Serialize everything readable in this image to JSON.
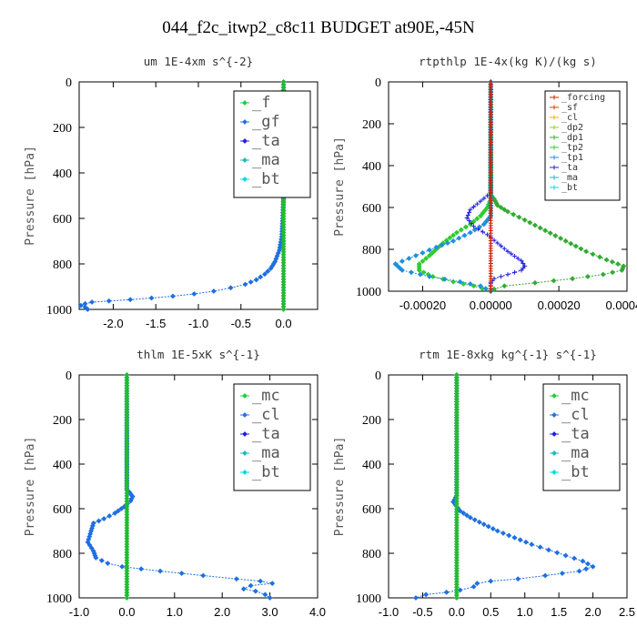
{
  "figure_title": "044_f2c_itwp2_c8c11  BUDGET at90E,-45N",
  "chart_data": [
    {
      "type": "line",
      "title": "um   1E-4xm s^{-2}",
      "ylabel": "Pressure [hPa]",
      "ylim": [
        1000,
        0
      ],
      "yticks": [
        "0",
        "200",
        "400",
        "600",
        "800",
        "1000"
      ],
      "xlim": [
        -2.4,
        0.4
      ],
      "xticks": [
        "-2.0",
        "-1.5",
        "-1.0",
        "-0.5",
        "0.0"
      ],
      "xtick_values": [
        -2.0,
        -1.5,
        -1.0,
        -0.5,
        0.0
      ],
      "legend_style": "big",
      "legend": [
        "_f",
        "_gf",
        "_ta",
        "_ma",
        "_bt"
      ],
      "series": [
        {
          "name": "_ta",
          "color": "#1e6fe0",
          "marker": "diamond",
          "points": [
            [
              0,
              0
            ],
            [
              0,
              500
            ],
            [
              -0.01,
              600
            ],
            [
              -0.02,
              680
            ],
            [
              -0.05,
              740
            ],
            [
              -0.1,
              790
            ],
            [
              -0.15,
              820
            ],
            [
              -0.22,
              845
            ],
            [
              -0.32,
              870
            ],
            [
              -0.45,
              890
            ],
            [
              -0.62,
              905
            ],
            [
              -0.82,
              920
            ],
            [
              -1.05,
              932
            ],
            [
              -1.3,
              942
            ],
            [
              -1.55,
              950
            ],
            [
              -1.8,
              957
            ],
            [
              -2.05,
              963
            ],
            [
              -2.25,
              968
            ],
            [
              -2.33,
              975
            ],
            [
              -2.38,
              983
            ],
            [
              -2.33,
              990
            ],
            [
              -2.3,
              1000
            ]
          ]
        },
        {
          "name": "_bt",
          "color": "#22bb33",
          "marker": "diamond",
          "points": [
            [
              0,
              0
            ],
            [
              0,
              1000
            ]
          ]
        }
      ]
    },
    {
      "type": "line",
      "title": "rtpthlp   1E-4x(kg K)/(kg s)",
      "ylabel": "Pressure [hPa]",
      "ylim": [
        1000,
        0
      ],
      "yticks": [
        "0",
        "200",
        "400",
        "600",
        "800",
        "1000"
      ],
      "xlim": [
        -0.0003,
        0.0004
      ],
      "xticks": [
        "-0.00020",
        "0.00000",
        "0.00020",
        "0.00040"
      ],
      "xtick_values": [
        -0.0002,
        0.0,
        0.0002,
        0.0004
      ],
      "legend_style": "small",
      "legend": [
        "_forcing",
        "_sf",
        "_cl",
        "_dp2",
        "_dp1",
        "_tp2",
        "_tp1",
        "_ta",
        "_ma",
        "_bt"
      ],
      "series": [
        {
          "name": "_dp1",
          "color": "#33aa33",
          "marker": "diamond",
          "points": [
            [
              0,
              0
            ],
            [
              0,
              540
            ],
            [
              1e-05,
              560
            ],
            [
              2e-05,
              590
            ],
            [
              5e-05,
              620
            ],
            [
              0.0001,
              660
            ],
            [
              0.00016,
              710
            ],
            [
              0.00022,
              760
            ],
            [
              0.00028,
              810
            ],
            [
              0.00034,
              850
            ],
            [
              0.00039,
              880
            ],
            [
              0.000385,
              900
            ],
            [
              0.00033,
              920
            ],
            [
              0.00024,
              940
            ],
            [
              0.00013,
              960
            ],
            [
              4e-05,
              975
            ],
            [
              1e-05,
              990
            ],
            [
              0,
              1000
            ]
          ]
        },
        {
          "name": "_tp2",
          "color": "#2ecc2e",
          "marker": "diamond",
          "points": [
            [
              0,
              0
            ],
            [
              0,
              560
            ],
            [
              -1e-05,
              600
            ],
            [
              -3e-05,
              640
            ],
            [
              -6e-05,
              680
            ],
            [
              -0.0001,
              720
            ],
            [
              -0.00014,
              770
            ],
            [
              -0.00018,
              830
            ],
            [
              -0.00021,
              870
            ],
            [
              -0.00021,
              900
            ],
            [
              -0.00017,
              930
            ],
            [
              -0.00011,
              955
            ],
            [
              -5e-05,
              975
            ],
            [
              0,
              1000
            ]
          ]
        },
        {
          "name": "_tp1",
          "color": "#1e90dd",
          "marker": "diamond",
          "points": [
            [
              0,
              0
            ],
            [
              0,
              640
            ],
            [
              -2e-05,
              680
            ],
            [
              -6e-05,
              720
            ],
            [
              -0.00011,
              760
            ],
            [
              -0.00016,
              790
            ],
            [
              -0.00022,
              830
            ],
            [
              -0.00028,
              870
            ],
            [
              -0.00026,
              900
            ],
            [
              -0.00018,
              930
            ],
            [
              -9e-05,
              955
            ],
            [
              -3e-05,
              975
            ],
            [
              0,
              1000
            ]
          ]
        },
        {
          "name": "_ta",
          "color": "#2222dd",
          "marker": "plus",
          "points": [
            [
              0,
              0
            ],
            [
              0,
              530
            ],
            [
              -3e-05,
              570
            ],
            [
              -6e-05,
              610
            ],
            [
              -7e-05,
              650
            ],
            [
              -5e-05,
              690
            ],
            [
              -1e-05,
              730
            ],
            [
              2e-05,
              770
            ],
            [
              5e-05,
              810
            ],
            [
              9e-05,
              855
            ],
            [
              0.0001,
              880
            ],
            [
              9e-05,
              900
            ],
            [
              5e-05,
              920
            ],
            [
              1e-05,
              940
            ],
            [
              0,
              960
            ],
            [
              0,
              1000
            ]
          ]
        },
        {
          "name": "_forcing",
          "color": "#cc2200",
          "marker": "plus",
          "points": [
            [
              0,
              0
            ],
            [
              0,
              1000
            ]
          ]
        }
      ]
    },
    {
      "type": "line",
      "title": "thlm   1E-5xK s^{-1}",
      "ylabel": "Pressure [hPa]",
      "ylim": [
        1000,
        0
      ],
      "yticks": [
        "0",
        "200",
        "400",
        "600",
        "800",
        "1000"
      ],
      "xlim": [
        -1.0,
        4.0
      ],
      "xticks": [
        "-1.0",
        "0.0",
        "1.0",
        "2.0",
        "3.0",
        "4.0"
      ],
      "xtick_values": [
        -1.0,
        0.0,
        1.0,
        2.0,
        3.0,
        4.0
      ],
      "legend_style": "big",
      "legend": [
        "_mc",
        "_cl",
        "_ta",
        "_ma",
        "_bt"
      ],
      "series": [
        {
          "name": "_ta",
          "color": "#1e6fe0",
          "marker": "diamond",
          "points": [
            [
              0,
              0
            ],
            [
              0,
              510
            ],
            [
              0.05,
              525
            ],
            [
              0.12,
              545
            ],
            [
              0.08,
              565
            ],
            [
              -0.05,
              590
            ],
            [
              -0.25,
              620
            ],
            [
              -0.48,
              645
            ],
            [
              -0.7,
              665
            ],
            [
              -0.75,
              700
            ],
            [
              -0.82,
              750
            ],
            [
              -0.7,
              790
            ],
            [
              -0.65,
              820
            ],
            [
              -0.4,
              845
            ],
            [
              -0.1,
              860
            ],
            [
              0.7,
              880
            ],
            [
              1.6,
              900
            ],
            [
              2.3,
              915
            ],
            [
              2.8,
              925
            ],
            [
              3.05,
              935
            ],
            [
              2.6,
              945
            ],
            [
              2.45,
              960
            ],
            [
              2.7,
              970
            ],
            [
              2.9,
              985
            ],
            [
              3.0,
              1000
            ]
          ]
        },
        {
          "name": "_bt",
          "color": "#22bb33",
          "marker": "diamond",
          "points": [
            [
              0,
              0
            ],
            [
              0,
              1000
            ]
          ]
        }
      ]
    },
    {
      "type": "line",
      "title": "rtm   1E-8xkg kg^{-1} s^{-1}",
      "ylabel": "Pressure [hPa]",
      "ylim": [
        1000,
        0
      ],
      "yticks": [
        "0",
        "200",
        "400",
        "600",
        "800",
        "1000"
      ],
      "xlim": [
        -1.0,
        2.5
      ],
      "xticks": [
        "-1.0",
        "-0.5",
        "0.0",
        "0.5",
        "1.0",
        "1.5",
        "2.0",
        "2.5"
      ],
      "xtick_values": [
        -1.0,
        -0.5,
        0.0,
        0.5,
        1.0,
        1.5,
        2.0,
        2.5
      ],
      "legend_style": "big",
      "legend": [
        "_mc",
        "_cl",
        "_ta",
        "_ma",
        "_bt"
      ],
      "series": [
        {
          "name": "_ta",
          "color": "#1e6fe0",
          "marker": "diamond",
          "points": [
            [
              0,
              0
            ],
            [
              0,
              540
            ],
            [
              -0.05,
              570
            ],
            [
              0.05,
              610
            ],
            [
              0.2,
              640
            ],
            [
              0.4,
              670
            ],
            [
              0.6,
              700
            ],
            [
              0.85,
              730
            ],
            [
              1.1,
              760
            ],
            [
              1.35,
              785
            ],
            [
              1.6,
              810
            ],
            [
              1.85,
              835
            ],
            [
              2.0,
              860
            ],
            [
              1.8,
              880
            ],
            [
              1.3,
              900
            ],
            [
              0.9,
              915
            ],
            [
              0.5,
              925
            ],
            [
              0.3,
              935
            ],
            [
              0.25,
              950
            ],
            [
              0.05,
              965
            ],
            [
              -0.15,
              975
            ],
            [
              -0.45,
              985
            ],
            [
              -0.6,
              1000
            ]
          ]
        },
        {
          "name": "_bt",
          "color": "#22bb33",
          "marker": "diamond",
          "points": [
            [
              0,
              0
            ],
            [
              0,
              1000
            ]
          ]
        }
      ]
    }
  ],
  "legend_colors": {
    "big": [
      "#22cc44",
      "#2277dd",
      "#2222dd",
      "#22bbbb",
      "#00dddd"
    ],
    "small": [
      "#cc2200",
      "#ee3300",
      "#ffaa00",
      "#99cc33",
      "#33aa33",
      "#2ecc2e",
      "#1e90dd",
      "#2222dd",
      "#22bbbb",
      "#00dddd"
    ]
  }
}
